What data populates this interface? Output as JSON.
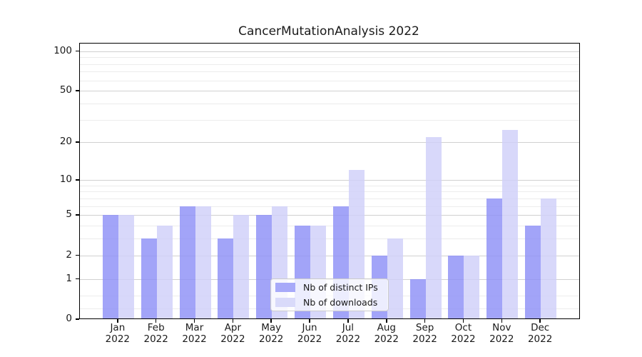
{
  "chart_data": {
    "type": "bar",
    "title": "CancerMutationAnalysis 2022",
    "year_label": "2022",
    "categories": [
      "Jan",
      "Feb",
      "Mar",
      "Apr",
      "May",
      "Jun",
      "Jul",
      "Aug",
      "Sep",
      "Oct",
      "Nov",
      "Dec"
    ],
    "series": [
      {
        "name": "Nb of distinct IPs",
        "color": "rgba(141,144,246,0.82)",
        "legend_color": "#a7a9f9",
        "values": [
          5,
          3,
          6,
          3,
          5,
          4,
          6,
          2,
          1,
          2,
          7,
          4
        ]
      },
      {
        "name": "Nb of downloads",
        "color": "rgba(207,208,249,0.82)",
        "legend_color": "#d9dafa",
        "values": [
          5,
          4,
          6,
          5,
          6,
          4,
          12,
          3,
          22,
          2,
          25,
          7
        ]
      }
    ],
    "y_scale": "log10(1+value)",
    "y_major_ticks": [
      0,
      1,
      2,
      5,
      10,
      20,
      50,
      100
    ],
    "y_minor_ticks": [
      0.2,
      0.5,
      3,
      4,
      6,
      7,
      8,
      9,
      30,
      40,
      60,
      70,
      80,
      90
    ],
    "ylim": [
      0,
      112
    ],
    "grid": "horizontal",
    "legend_position": "lower center",
    "colors": {
      "major_grid": "#d0d0d0",
      "minor_grid": "#ececec",
      "axis": "#000000",
      "text": "#1a1a1a",
      "background": "#ffffff"
    }
  }
}
